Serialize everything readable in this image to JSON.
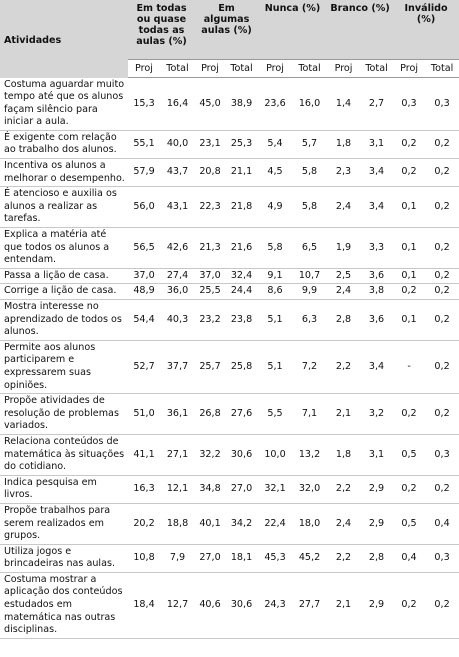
{
  "table": {
    "header": {
      "activity": "Atividades",
      "groups": [
        "Em todas ou quase todas as aulas (%)",
        "Em algumas aulas (%)",
        "Nunca (%)",
        "Branco (%)",
        "Inválido (%)"
      ],
      "subheaders": [
        "Proj",
        "Total",
        "Proj",
        "Total",
        "Proj",
        "Total",
        "Proj",
        "Total",
        "Proj",
        "Total"
      ]
    },
    "rows": [
      {
        "label": "Costuma aguardar muito tempo até que os alunos façam silêncio para iniciar a aula.",
        "values": [
          "15,3",
          "16,4",
          "45,0",
          "38,9",
          "23,6",
          "16,0",
          "1,4",
          "2,7",
          "0,3",
          "0,3"
        ]
      },
      {
        "label": "É exigente com relação ao trabalho dos alunos.",
        "values": [
          "55,1",
          "40,0",
          "23,1",
          "25,3",
          "5,4",
          "5,7",
          "1,8",
          "3,1",
          "0,2",
          "0,2"
        ]
      },
      {
        "label": "Incentiva os alunos a melhorar o desempenho.",
        "values": [
          "57,9",
          "43,7",
          "20,8",
          "21,1",
          "4,5",
          "5,8",
          "2,3",
          "3,4",
          "0,2",
          "0,2"
        ]
      },
      {
        "label": "É atencioso e auxilia os alunos a realizar as tarefas.",
        "values": [
          "56,0",
          "43,1",
          "22,3",
          "21,8",
          "4,9",
          "5,8",
          "2,4",
          "3,4",
          "0,1",
          "0,2"
        ]
      },
      {
        "label": "Explica a matéria até que todos os alunos a entendam.",
        "values": [
          "56,5",
          "42,6",
          "21,3",
          "21,6",
          "5,8",
          "6,5",
          "1,9",
          "3,3",
          "0,1",
          "0,2"
        ]
      },
      {
        "label": "Passa a lição de casa.",
        "values": [
          "37,0",
          "27,4",
          "37,0",
          "32,4",
          "9,1",
          "10,7",
          "2,5",
          "3,6",
          "0,1",
          "0,2"
        ]
      },
      {
        "label": "Corrige a lição de casa.",
        "values": [
          "48,9",
          "36,0",
          "25,5",
          "24,4",
          "8,6",
          "9,9",
          "2,4",
          "3,8",
          "0,2",
          "0,2"
        ]
      },
      {
        "label": "Mostra interesse no aprendizado de todos os alunos.",
        "values": [
          "54,4",
          "40,3",
          "23,2",
          "23,8",
          "5,1",
          "6,3",
          "2,8",
          "3,6",
          "0,1",
          "0,2"
        ]
      },
      {
        "label": "Permite aos alunos participarem e expressarem suas opiniões.",
        "values": [
          "52,7",
          "37,7",
          "25,7",
          "25,8",
          "5,1",
          "7,2",
          "2,2",
          "3,4",
          "-",
          "0,2"
        ]
      },
      {
        "label": "Propõe atividades de resolução de problemas variados.",
        "values": [
          "51,0",
          "36,1",
          "26,8",
          "27,6",
          "5,5",
          "7,1",
          "2,1",
          "3,2",
          "0,2",
          "0,2"
        ]
      },
      {
        "label": "Relaciona conteúdos de matemática às situações do cotidiano.",
        "values": [
          "41,1",
          "27,1",
          "32,2",
          "30,6",
          "10,0",
          "13,2",
          "1,8",
          "3,1",
          "0,5",
          "0,3"
        ]
      },
      {
        "label": "Indica pesquisa em livros.",
        "values": [
          "16,3",
          "12,1",
          "34,8",
          "27,0",
          "32,1",
          "32,0",
          "2,2",
          "2,9",
          "0,2",
          "0,2"
        ]
      },
      {
        "label": "Propõe trabalhos para serem realizados em grupos.",
        "values": [
          "20,2",
          "18,8",
          "40,1",
          "34,2",
          "22,4",
          "18,0",
          "2,4",
          "2,9",
          "0,5",
          "0,4"
        ]
      },
      {
        "label": "Utiliza jogos e brincadeiras nas aulas.",
        "values": [
          "10,8",
          "7,9",
          "27,0",
          "18,1",
          "45,3",
          "45,2",
          "2,2",
          "2,8",
          "0,4",
          "0,3"
        ]
      },
      {
        "label": "Costuma mostrar a aplicação dos conteúdos estudados em matemática nas outras disciplinas.",
        "values": [
          "18,4",
          "12,7",
          "40,6",
          "30,6",
          "24,3",
          "27,7",
          "2,1",
          "2,9",
          "0,2",
          "0,2"
        ]
      }
    ]
  }
}
